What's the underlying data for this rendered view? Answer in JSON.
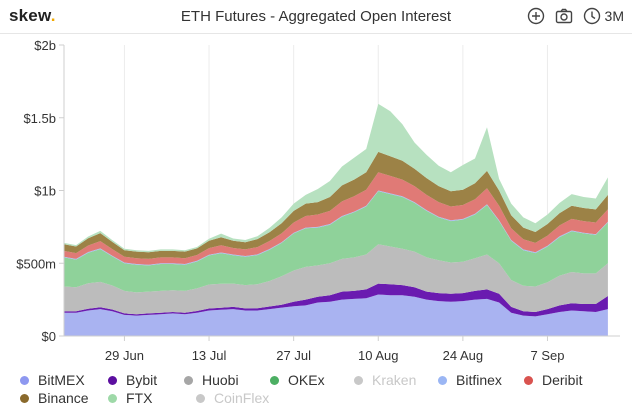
{
  "header": {
    "logo_text": "skew",
    "logo_dot": ".",
    "title": "ETH Futures - Aggregated Open Interest",
    "icons": [
      "add-icon",
      "camera-icon",
      "clock-icon"
    ],
    "range_label": "3M"
  },
  "colors": {
    "BitMEX": "#a9b3f1",
    "Bybit": "#6a1bb0",
    "Huobi": "#bcbcbc",
    "OKEx": "#8fd29a",
    "Kraken": "#dcdcdc",
    "Bitfinex": "#a6baf5",
    "Deribit": "#e07a76",
    "Binance": "#9c8246",
    "FTX": "#b7e1c0",
    "CoinFlex": "#d7d7d7",
    "logo_accent": "#f2a900"
  },
  "legend": {
    "rows": [
      [
        {
          "name": "BitMEX",
          "color": "#8e98f0",
          "hidden": false
        },
        {
          "name": "Bybit",
          "color": "#5c0fa0",
          "hidden": false
        },
        {
          "name": "Huobi",
          "color": "#a6a6a6",
          "hidden": false
        },
        {
          "name": "OKEx",
          "color": "#4caf63",
          "hidden": false
        },
        {
          "name": "Kraken",
          "color": "#cfcfcf",
          "hidden": true
        },
        {
          "name": "Bitfinex",
          "color": "#9bb6f4",
          "hidden": false
        },
        {
          "name": "Deribit",
          "color": "#d9534f",
          "hidden": false
        }
      ],
      [
        {
          "name": "Binance",
          "color": "#8a6a2c",
          "hidden": false
        },
        {
          "name": "FTX",
          "color": "#9ed9a8",
          "hidden": false
        },
        {
          "name": "CoinFlex",
          "color": "#cfcfcf",
          "hidden": true
        }
      ]
    ]
  },
  "chart_data": {
    "type": "area",
    "stacked": true,
    "title": "ETH Futures - Aggregated Open Interest",
    "xlabel": "",
    "ylabel": "",
    "ylim": [
      0,
      2000
    ],
    "y_unit": "USD millions",
    "y_ticks": [
      {
        "value": 0,
        "label": "$0"
      },
      {
        "value": 500,
        "label": "$500m"
      },
      {
        "value": 1000,
        "label": "$1b"
      },
      {
        "value": 1500,
        "label": "$1.5b"
      },
      {
        "value": 2000,
        "label": "$2b"
      }
    ],
    "x_ticks": [
      {
        "index": 5,
        "label": "29 Jun"
      },
      {
        "index": 12,
        "label": "13 Jul"
      },
      {
        "index": 19,
        "label": "27 Jul"
      },
      {
        "index": 26,
        "label": "10 Aug"
      },
      {
        "index": 33,
        "label": "24 Aug"
      },
      {
        "index": 40,
        "label": "7 Sep"
      }
    ],
    "x_domain": [
      0,
      46
    ],
    "x_start_label": "20 Jun",
    "x_step_days": 2,
    "grid": "vertical",
    "series": [
      {
        "name": "BitMEX",
        "values": [
          160,
          160,
          175,
          185,
          170,
          145,
          140,
          145,
          150,
          155,
          150,
          160,
          175,
          180,
          185,
          175,
          175,
          185,
          195,
          205,
          210,
          230,
          235,
          250,
          255,
          260,
          285,
          280,
          280,
          270,
          250,
          240,
          235,
          240,
          250,
          255,
          230,
          160,
          140,
          135,
          150,
          165,
          175,
          170,
          165,
          185
        ]
      },
      {
        "name": "Bybit",
        "values": [
          10,
          10,
          12,
          12,
          12,
          10,
          10,
          10,
          10,
          10,
          10,
          12,
          14,
          14,
          15,
          15,
          16,
          18,
          20,
          30,
          40,
          40,
          45,
          55,
          55,
          60,
          75,
          75,
          70,
          65,
          55,
          55,
          55,
          55,
          60,
          65,
          60,
          40,
          30,
          30,
          35,
          45,
          50,
          50,
          55,
          90
        ]
      },
      {
        "name": "Huobi",
        "values": [
          170,
          165,
          175,
          175,
          165,
          155,
          150,
          150,
          150,
          150,
          150,
          155,
          165,
          165,
          160,
          160,
          165,
          175,
          195,
          215,
          225,
          215,
          220,
          225,
          230,
          240,
          270,
          260,
          250,
          245,
          235,
          225,
          215,
          215,
          225,
          240,
          210,
          185,
          175,
          175,
          185,
          205,
          215,
          210,
          210,
          225
        ]
      },
      {
        "name": "OKEx",
        "values": [
          200,
          190,
          210,
          225,
          200,
          190,
          190,
          180,
          185,
          180,
          180,
          185,
          200,
          210,
          195,
          195,
          200,
          215,
          230,
          255,
          265,
          260,
          265,
          290,
          310,
          330,
          365,
          360,
          355,
          335,
          320,
          295,
          285,
          290,
          300,
          340,
          290,
          270,
          245,
          230,
          245,
          265,
          280,
          275,
          265,
          280
        ]
      },
      {
        "name": "Kraken",
        "values": [
          0,
          0,
          0,
          0,
          0,
          0,
          0,
          0,
          0,
          0,
          0,
          0,
          0,
          0,
          0,
          0,
          0,
          0,
          0,
          0,
          0,
          0,
          0,
          0,
          0,
          0,
          0,
          0,
          0,
          0,
          0,
          0,
          0,
          0,
          0,
          0,
          0,
          0,
          0,
          0,
          0,
          0,
          0,
          0,
          0,
          0
        ]
      },
      {
        "name": "Bitfinex",
        "values": [
          5,
          5,
          5,
          5,
          5,
          5,
          5,
          5,
          5,
          5,
          5,
          5,
          5,
          5,
          5,
          5,
          5,
          5,
          5,
          5,
          5,
          5,
          5,
          5,
          5,
          5,
          5,
          5,
          5,
          5,
          5,
          5,
          5,
          5,
          5,
          5,
          5,
          5,
          5,
          5,
          5,
          5,
          5,
          5,
          5,
          5
        ]
      },
      {
        "name": "Deribit",
        "values": [
          40,
          40,
          45,
          50,
          45,
          40,
          40,
          40,
          40,
          40,
          40,
          40,
          45,
          50,
          45,
          45,
          50,
          55,
          60,
          70,
          80,
          85,
          90,
          100,
          105,
          110,
          125,
          120,
          115,
          110,
          105,
          100,
          95,
          95,
          100,
          110,
          100,
          80,
          70,
          65,
          70,
          75,
          80,
          80,
          80,
          85
        ]
      },
      {
        "name": "Binance",
        "values": [
          45,
          45,
          50,
          55,
          50,
          45,
          45,
          45,
          45,
          45,
          45,
          45,
          50,
          55,
          50,
          50,
          55,
          60,
          70,
          80,
          85,
          85,
          95,
          110,
          115,
          120,
          140,
          135,
          130,
          120,
          115,
          110,
          105,
          105,
          110,
          120,
          105,
          90,
          80,
          75,
          80,
          85,
          90,
          90,
          90,
          100
        ]
      },
      {
        "name": "FTX",
        "values": [
          10,
          10,
          12,
          15,
          12,
          10,
          10,
          10,
          10,
          10,
          10,
          10,
          15,
          25,
          15,
          15,
          20,
          30,
          40,
          50,
          60,
          90,
          110,
          130,
          150,
          160,
          330,
          310,
          250,
          180,
          160,
          140,
          130,
          170,
          170,
          300,
          80,
          80,
          70,
          60,
          65,
          70,
          80,
          75,
          75,
          120
        ]
      },
      {
        "name": "CoinFlex",
        "values": [
          0,
          0,
          0,
          0,
          0,
          0,
          0,
          0,
          0,
          0,
          0,
          0,
          0,
          0,
          0,
          0,
          0,
          0,
          0,
          0,
          0,
          0,
          0,
          0,
          0,
          0,
          0,
          0,
          0,
          0,
          0,
          0,
          0,
          0,
          0,
          0,
          0,
          0,
          0,
          0,
          0,
          0,
          0,
          0,
          0,
          0
        ]
      }
    ]
  }
}
